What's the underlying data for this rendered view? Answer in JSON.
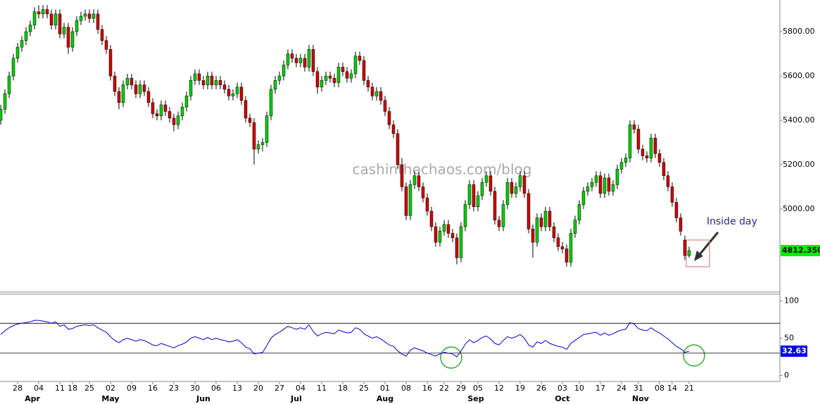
{
  "chart_data": {
    "type": "candlestick",
    "ohlc": [
      [
        5400,
        5470,
        5380,
        5450
      ],
      [
        5450,
        5540,
        5430,
        5520
      ],
      [
        5520,
        5620,
        5500,
        5600
      ],
      [
        5600,
        5700,
        5580,
        5680
      ],
      [
        5680,
        5750,
        5660,
        5730
      ],
      [
        5730,
        5780,
        5710,
        5760
      ],
      [
        5760,
        5820,
        5740,
        5800
      ],
      [
        5800,
        5850,
        5780,
        5830
      ],
      [
        5830,
        5910,
        5810,
        5890
      ],
      [
        5890,
        5920,
        5860,
        5880
      ],
      [
        5880,
        5920,
        5860,
        5900
      ],
      [
        5900,
        5920,
        5860,
        5880
      ],
      [
        5880,
        5900,
        5810,
        5830
      ],
      [
        5830,
        5900,
        5810,
        5880
      ],
      [
        5880,
        5900,
        5770,
        5790
      ],
      [
        5790,
        5840,
        5770,
        5820
      ],
      [
        5820,
        5840,
        5700,
        5730
      ],
      [
        5730,
        5820,
        5710,
        5800
      ],
      [
        5800,
        5870,
        5780,
        5850
      ],
      [
        5850,
        5890,
        5830,
        5870
      ],
      [
        5870,
        5900,
        5850,
        5880
      ],
      [
        5880,
        5900,
        5840,
        5860
      ],
      [
        5860,
        5900,
        5840,
        5880
      ],
      [
        5880,
        5900,
        5790,
        5810
      ],
      [
        5810,
        5830,
        5740,
        5760
      ],
      [
        5760,
        5780,
        5700,
        5720
      ],
      [
        5720,
        5740,
        5580,
        5600
      ],
      [
        5600,
        5620,
        5510,
        5530
      ],
      [
        5530,
        5550,
        5450,
        5480
      ],
      [
        5480,
        5580,
        5460,
        5560
      ],
      [
        5560,
        5610,
        5540,
        5590
      ],
      [
        5590,
        5610,
        5540,
        5560
      ],
      [
        5560,
        5580,
        5500,
        5520
      ],
      [
        5520,
        5580,
        5500,
        5560
      ],
      [
        5560,
        5580,
        5510,
        5530
      ],
      [
        5530,
        5550,
        5460,
        5480
      ],
      [
        5480,
        5500,
        5410,
        5430
      ],
      [
        5430,
        5450,
        5400,
        5420
      ],
      [
        5420,
        5490,
        5400,
        5470
      ],
      [
        5470,
        5490,
        5420,
        5440
      ],
      [
        5440,
        5460,
        5390,
        5410
      ],
      [
        5410,
        5430,
        5350,
        5380
      ],
      [
        5380,
        5440,
        5360,
        5420
      ],
      [
        5420,
        5480,
        5400,
        5460
      ],
      [
        5460,
        5530,
        5440,
        5510
      ],
      [
        5510,
        5600,
        5490,
        5580
      ],
      [
        5580,
        5630,
        5560,
        5610
      ],
      [
        5610,
        5630,
        5560,
        5580
      ],
      [
        5580,
        5600,
        5540,
        5560
      ],
      [
        5560,
        5620,
        5540,
        5600
      ],
      [
        5600,
        5620,
        5540,
        5560
      ],
      [
        5560,
        5600,
        5540,
        5580
      ],
      [
        5580,
        5600,
        5540,
        5560
      ],
      [
        5560,
        5580,
        5520,
        5540
      ],
      [
        5540,
        5560,
        5490,
        5510
      ],
      [
        5510,
        5540,
        5490,
        5520
      ],
      [
        5520,
        5570,
        5500,
        5550
      ],
      [
        5550,
        5570,
        5470,
        5490
      ],
      [
        5490,
        5510,
        5390,
        5410
      ],
      [
        5410,
        5430,
        5370,
        5390
      ],
      [
        5390,
        5410,
        5200,
        5270
      ],
      [
        5270,
        5310,
        5250,
        5290
      ],
      [
        5290,
        5320,
        5260,
        5300
      ],
      [
        5300,
        5440,
        5280,
        5420
      ],
      [
        5420,
        5560,
        5400,
        5540
      ],
      [
        5540,
        5600,
        5520,
        5580
      ],
      [
        5580,
        5620,
        5560,
        5600
      ],
      [
        5600,
        5670,
        5580,
        5650
      ],
      [
        5650,
        5720,
        5630,
        5700
      ],
      [
        5700,
        5720,
        5660,
        5680
      ],
      [
        5680,
        5700,
        5640,
        5660
      ],
      [
        5660,
        5700,
        5640,
        5680
      ],
      [
        5680,
        5700,
        5620,
        5640
      ],
      [
        5640,
        5740,
        5620,
        5720
      ],
      [
        5720,
        5740,
        5600,
        5620
      ],
      [
        5620,
        5640,
        5520,
        5550
      ],
      [
        5550,
        5600,
        5530,
        5580
      ],
      [
        5580,
        5620,
        5560,
        5600
      ],
      [
        5600,
        5620,
        5570,
        5590
      ],
      [
        5590,
        5610,
        5550,
        5570
      ],
      [
        5570,
        5660,
        5550,
        5640
      ],
      [
        5640,
        5660,
        5600,
        5620
      ],
      [
        5620,
        5640,
        5570,
        5590
      ],
      [
        5590,
        5630,
        5570,
        5610
      ],
      [
        5610,
        5710,
        5590,
        5690
      ],
      [
        5690,
        5710,
        5650,
        5670
      ],
      [
        5670,
        5690,
        5560,
        5580
      ],
      [
        5580,
        5600,
        5530,
        5550
      ],
      [
        5550,
        5570,
        5490,
        5510
      ],
      [
        5510,
        5550,
        5490,
        5530
      ],
      [
        5530,
        5550,
        5470,
        5490
      ],
      [
        5490,
        5510,
        5420,
        5440
      ],
      [
        5440,
        5460,
        5360,
        5380
      ],
      [
        5380,
        5400,
        5320,
        5340
      ],
      [
        5340,
        5360,
        5180,
        5200
      ],
      [
        5200,
        5230,
        5080,
        5100
      ],
      [
        5100,
        5120,
        4950,
        4970
      ],
      [
        4970,
        5130,
        4950,
        5110
      ],
      [
        5110,
        5170,
        5090,
        5150
      ],
      [
        5150,
        5170,
        5080,
        5100
      ],
      [
        5100,
        5120,
        5030,
        5050
      ],
      [
        5050,
        5070,
        4970,
        4990
      ],
      [
        4990,
        5010,
        4900,
        4920
      ],
      [
        4920,
        4940,
        4830,
        4850
      ],
      [
        4850,
        4920,
        4830,
        4900
      ],
      [
        4900,
        4950,
        4880,
        4930
      ],
      [
        4930,
        4950,
        4870,
        4890
      ],
      [
        4890,
        4910,
        4850,
        4870
      ],
      [
        4870,
        4890,
        4750,
        4780
      ],
      [
        4780,
        4940,
        4760,
        4920
      ],
      [
        4920,
        5040,
        4900,
        5020
      ],
      [
        5020,
        5130,
        5000,
        5110
      ],
      [
        5110,
        5130,
        4990,
        5010
      ],
      [
        5010,
        5080,
        4990,
        5060
      ],
      [
        5060,
        5140,
        5040,
        5120
      ],
      [
        5120,
        5170,
        5100,
        5150
      ],
      [
        5150,
        5170,
        5060,
        5080
      ],
      [
        5080,
        5100,
        4930,
        4950
      ],
      [
        4950,
        4970,
        4900,
        4920
      ],
      [
        4920,
        5040,
        4900,
        5020
      ],
      [
        5020,
        5140,
        5000,
        5120
      ],
      [
        5120,
        5140,
        5050,
        5070
      ],
      [
        5070,
        5120,
        5050,
        5100
      ],
      [
        5100,
        5170,
        5080,
        5150
      ],
      [
        5150,
        5170,
        5050,
        5070
      ],
      [
        5070,
        5090,
        4890,
        4910
      ],
      [
        4910,
        4930,
        4780,
        4850
      ],
      [
        4850,
        4980,
        4830,
        4960
      ],
      [
        4960,
        4980,
        4900,
        4920
      ],
      [
        4920,
        5010,
        4900,
        4990
      ],
      [
        4990,
        5010,
        4900,
        4920
      ],
      [
        4920,
        4940,
        4850,
        4870
      ],
      [
        4870,
        4890,
        4810,
        4830
      ],
      [
        4830,
        4850,
        4800,
        4820
      ],
      [
        4820,
        4840,
        4740,
        4760
      ],
      [
        4760,
        4910,
        4740,
        4890
      ],
      [
        4890,
        4970,
        4870,
        4950
      ],
      [
        4950,
        5040,
        4930,
        5020
      ],
      [
        5020,
        5100,
        5000,
        5080
      ],
      [
        5080,
        5120,
        5060,
        5100
      ],
      [
        5100,
        5140,
        5080,
        5120
      ],
      [
        5120,
        5170,
        5100,
        5150
      ],
      [
        5150,
        5170,
        5050,
        5070
      ],
      [
        5070,
        5160,
        5050,
        5140
      ],
      [
        5140,
        5160,
        5060,
        5080
      ],
      [
        5080,
        5130,
        5060,
        5110
      ],
      [
        5110,
        5200,
        5090,
        5180
      ],
      [
        5180,
        5230,
        5160,
        5210
      ],
      [
        5210,
        5250,
        5190,
        5230
      ],
      [
        5230,
        5400,
        5210,
        5380
      ],
      [
        5380,
        5400,
        5340,
        5360
      ],
      [
        5360,
        5380,
        5250,
        5270
      ],
      [
        5270,
        5290,
        5220,
        5240
      ],
      [
        5240,
        5260,
        5210,
        5230
      ],
      [
        5230,
        5340,
        5210,
        5320
      ],
      [
        5320,
        5340,
        5230,
        5250
      ],
      [
        5250,
        5270,
        5190,
        5210
      ],
      [
        5210,
        5230,
        5130,
        5150
      ],
      [
        5150,
        5170,
        5080,
        5100
      ],
      [
        5100,
        5120,
        5010,
        5030
      ],
      [
        5030,
        5050,
        4940,
        4960
      ],
      [
        4960,
        4980,
        4880,
        4900
      ],
      [
        4860,
        4880,
        4770,
        4790
      ],
      [
        4790,
        4830,
        4780,
        4812.35
      ]
    ],
    "up_color": "#00cc00",
    "down_color": "#cc0000",
    "xlim": [
      -0.17,
      184.5
    ],
    "xticks": [
      {
        "value": 4,
        "label": "28"
      },
      {
        "value": 9,
        "label": "04"
      },
      {
        "value": 14,
        "label": "11"
      },
      {
        "value": 17,
        "label": "18"
      },
      {
        "value": 21,
        "label": "25"
      },
      {
        "value": 26,
        "label": "02"
      },
      {
        "value": 31,
        "label": "09"
      },
      {
        "value": 36,
        "label": "16"
      },
      {
        "value": 41,
        "label": "23"
      },
      {
        "value": 46,
        "label": "30"
      },
      {
        "value": 51,
        "label": "06"
      },
      {
        "value": 56,
        "label": "13"
      },
      {
        "value": 61,
        "label": "20"
      },
      {
        "value": 66,
        "label": "27"
      },
      {
        "value": 71,
        "label": "04"
      },
      {
        "value": 76,
        "label": "11"
      },
      {
        "value": 81,
        "label": "18"
      },
      {
        "value": 86,
        "label": "25"
      },
      {
        "value": 91,
        "label": "01"
      },
      {
        "value": 96,
        "label": "08"
      },
      {
        "value": 101,
        "label": "16"
      },
      {
        "value": 105,
        "label": "22"
      },
      {
        "value": 109,
        "label": "29"
      },
      {
        "value": 113,
        "label": "05"
      },
      {
        "value": 118,
        "label": "12"
      },
      {
        "value": 123,
        "label": "19"
      },
      {
        "value": 128,
        "label": "26"
      },
      {
        "value": 133,
        "label": "03"
      },
      {
        "value": 137,
        "label": "10"
      },
      {
        "value": 142,
        "label": "17"
      },
      {
        "value": 147,
        "label": "24"
      },
      {
        "value": 151,
        "label": "31"
      },
      {
        "value": 156,
        "label": "08"
      },
      {
        "value": 159,
        "label": "14"
      },
      {
        "value": 163,
        "label": "21"
      }
    ],
    "months": [
      {
        "value": 7.5,
        "label": "Apr"
      },
      {
        "value": 26,
        "label": "May"
      },
      {
        "value": 48,
        "label": "Jun"
      },
      {
        "value": 70,
        "label": "Jul"
      },
      {
        "value": 91,
        "label": "Aug"
      },
      {
        "value": 112.5,
        "label": "Sep"
      },
      {
        "value": 133,
        "label": "Oct"
      },
      {
        "value": 151.5,
        "label": "Nov"
      }
    ],
    "ylim": [
      4625,
      5943
    ],
    "yticks": [
      {
        "value": 5000,
        "label": "5000.00"
      },
      {
        "value": 5200,
        "label": "5200.00"
      },
      {
        "value": 5400,
        "label": "5400.00"
      },
      {
        "value": 5600,
        "label": "5600.00"
      },
      {
        "value": 5800,
        "label": "5800.00"
      }
    ],
    "last_price": {
      "value": 4812.35,
      "label": "4812.350"
    },
    "watermark": "cashinthechaos.com/blog",
    "annotation": "Inside day",
    "rsi": {
      "color": "#0000cc",
      "values": [
        55,
        60,
        64,
        67,
        69,
        70,
        71,
        72,
        74,
        74,
        73,
        72,
        70,
        72,
        66,
        68,
        62,
        63,
        66,
        67,
        68,
        67,
        68,
        64,
        61,
        58,
        52,
        47,
        44,
        48,
        50,
        48,
        46,
        48,
        47,
        44,
        41,
        40,
        43,
        41,
        39,
        37,
        40,
        42,
        45,
        50,
        52,
        50,
        48,
        51,
        48,
        50,
        48,
        47,
        45,
        46,
        48,
        44,
        38,
        36,
        29,
        30,
        31,
        40,
        50,
        55,
        58,
        62,
        66,
        64,
        62,
        64,
        62,
        68,
        59,
        53,
        56,
        58,
        57,
        56,
        61,
        59,
        57,
        58,
        64,
        62,
        56,
        53,
        50,
        52,
        49,
        45,
        41,
        39,
        33,
        29,
        26,
        34,
        37,
        35,
        33,
        30,
        28,
        26,
        29,
        31,
        30,
        29,
        25,
        33,
        42,
        48,
        44,
        47,
        51,
        53,
        49,
        43,
        41,
        47,
        52,
        50,
        52,
        55,
        50,
        41,
        38,
        45,
        43,
        47,
        43,
        41,
        39,
        38,
        35,
        43,
        47,
        51,
        55,
        56,
        57,
        58,
        54,
        57,
        54,
        56,
        59,
        61,
        62,
        71,
        69,
        63,
        61,
        60,
        64,
        60,
        57,
        53,
        49,
        44,
        39,
        36,
        31,
        32.63
      ],
      "ylim": [
        -8,
        109
      ],
      "yticks": [
        0,
        50,
        100
      ],
      "levels": [
        70,
        30
      ]
    }
  }
}
